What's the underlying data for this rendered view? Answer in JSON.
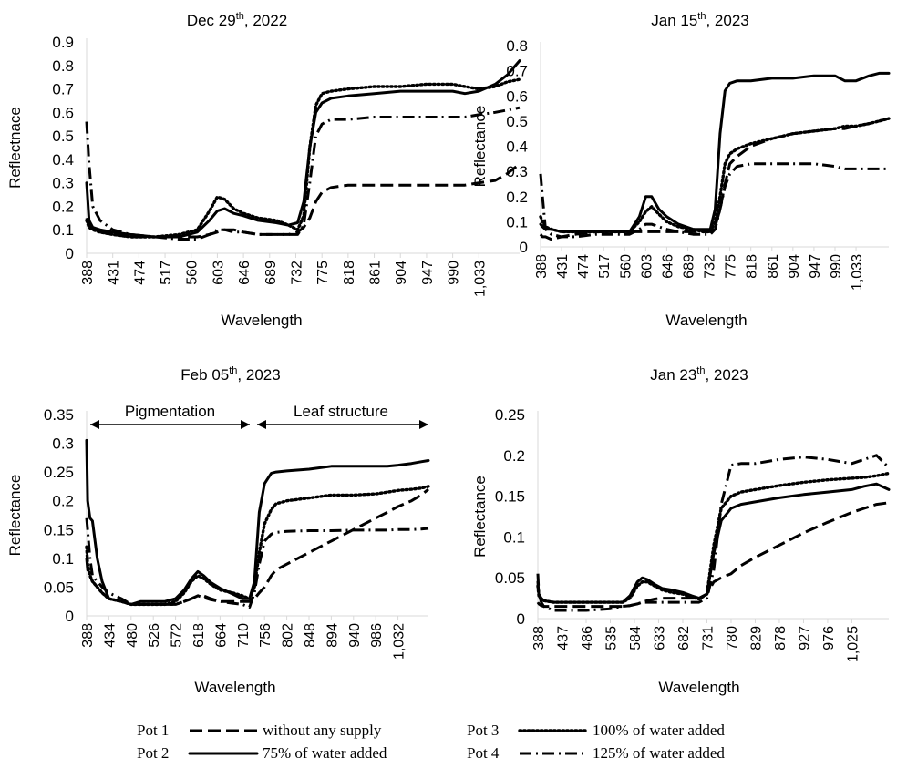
{
  "chart_data": [
    {
      "type": "line",
      "title": "Dec 29th, 2022",
      "title_parts": {
        "pre": "Dec 29",
        "sup": "th",
        "post": ", 2022"
      },
      "xlabel": "Wavelength",
      "ylabel": "Reflectnace",
      "ylim": [
        0,
        0.9
      ],
      "ystep": 0.1,
      "xlim": [
        388,
        1100
      ],
      "xticks": [
        "388",
        "431",
        "474",
        "517",
        "560",
        "603",
        "646",
        "689",
        "732",
        "775",
        "818",
        "861",
        "904",
        "947",
        "990",
        "1,033"
      ],
      "x": [
        388,
        392,
        398,
        410,
        431,
        460,
        500,
        540,
        570,
        590,
        603,
        615,
        630,
        646,
        670,
        700,
        720,
        735,
        745,
        755,
        765,
        775,
        790,
        818,
        861,
        904,
        947,
        990,
        1010,
        1033,
        1060,
        1080,
        1100
      ],
      "series": [
        {
          "name": "Pot 1",
          "values": [
            0.15,
            0.12,
            0.1,
            0.09,
            0.08,
            0.07,
            0.07,
            0.07,
            0.07,
            0.08,
            0.09,
            0.1,
            0.1,
            0.09,
            0.08,
            0.08,
            0.08,
            0.09,
            0.11,
            0.15,
            0.22,
            0.26,
            0.28,
            0.29,
            0.29,
            0.29,
            0.29,
            0.29,
            0.29,
            0.3,
            0.31,
            0.34,
            0.38
          ]
        },
        {
          "name": "Pot 2",
          "values": [
            0.3,
            0.14,
            0.11,
            0.1,
            0.09,
            0.08,
            0.07,
            0.07,
            0.09,
            0.14,
            0.18,
            0.19,
            0.17,
            0.16,
            0.14,
            0.13,
            0.12,
            0.13,
            0.22,
            0.45,
            0.6,
            0.64,
            0.66,
            0.67,
            0.68,
            0.69,
            0.69,
            0.69,
            0.68,
            0.69,
            0.72,
            0.76,
            0.82
          ]
        },
        {
          "name": "Pot 3",
          "values": [
            0.14,
            0.11,
            0.1,
            0.09,
            0.08,
            0.07,
            0.07,
            0.08,
            0.1,
            0.18,
            0.24,
            0.23,
            0.19,
            0.17,
            0.15,
            0.14,
            0.12,
            0.1,
            0.16,
            0.45,
            0.63,
            0.68,
            0.69,
            0.7,
            0.71,
            0.71,
            0.72,
            0.72,
            0.71,
            0.7,
            0.71,
            0.73,
            0.74
          ]
        },
        {
          "name": "Pot 4",
          "values": [
            0.56,
            0.38,
            0.2,
            0.14,
            0.1,
            0.08,
            0.07,
            0.06,
            0.06,
            0.08,
            0.1,
            0.1,
            0.09,
            0.09,
            0.08,
            0.08,
            0.08,
            0.08,
            0.12,
            0.3,
            0.5,
            0.55,
            0.57,
            0.57,
            0.58,
            0.58,
            0.58,
            0.58,
            0.58,
            0.59,
            0.6,
            0.61,
            0.62
          ]
        }
      ]
    },
    {
      "type": "line",
      "title": "Jan 15th, 2023",
      "title_parts": {
        "pre": "Jan 15",
        "sup": "th",
        "post": ", 2023"
      },
      "xlabel": "Wavelength",
      "ylabel": "Reflectance",
      "ylim": [
        0,
        0.8
      ],
      "ystep": 0.1,
      "xlim": [
        388,
        1100
      ],
      "xticks": [
        "388",
        "431",
        "474",
        "517",
        "560",
        "603",
        "646",
        "689",
        "732",
        "775",
        "818",
        "861",
        "904",
        "947",
        "990",
        "1,033"
      ],
      "x": [
        388,
        392,
        398,
        410,
        431,
        460,
        500,
        540,
        570,
        590,
        603,
        615,
        630,
        646,
        670,
        700,
        720,
        735,
        745,
        755,
        765,
        775,
        790,
        818,
        861,
        904,
        947,
        990,
        1010,
        1033,
        1060,
        1080,
        1100
      ],
      "series": [
        {
          "name": "Pot 1",
          "values": [
            0.05,
            0.04,
            0.04,
            0.03,
            0.04,
            0.05,
            0.06,
            0.06,
            0.06,
            0.06,
            0.06,
            0.06,
            0.06,
            0.06,
            0.06,
            0.06,
            0.06,
            0.06,
            0.08,
            0.15,
            0.25,
            0.33,
            0.36,
            0.4,
            0.43,
            0.45,
            0.46,
            0.47,
            0.47,
            0.48,
            0.49,
            0.5,
            0.51
          ]
        },
        {
          "name": "Pot 2",
          "values": [
            0.09,
            0.08,
            0.07,
            0.07,
            0.06,
            0.06,
            0.06,
            0.06,
            0.06,
            0.12,
            0.2,
            0.2,
            0.15,
            0.12,
            0.09,
            0.07,
            0.07,
            0.07,
            0.15,
            0.45,
            0.62,
            0.65,
            0.66,
            0.66,
            0.67,
            0.67,
            0.68,
            0.68,
            0.66,
            0.66,
            0.68,
            0.69,
            0.69
          ]
        },
        {
          "name": "Pot 3",
          "values": [
            0.12,
            0.1,
            0.08,
            0.07,
            0.06,
            0.06,
            0.06,
            0.06,
            0.06,
            0.1,
            0.14,
            0.16,
            0.13,
            0.1,
            0.08,
            0.07,
            0.06,
            0.06,
            0.1,
            0.2,
            0.33,
            0.37,
            0.39,
            0.41,
            0.43,
            0.45,
            0.46,
            0.47,
            0.48,
            0.48,
            0.49,
            0.5,
            0.51
          ]
        },
        {
          "name": "Pot 4",
          "values": [
            0.29,
            0.2,
            0.07,
            0.05,
            0.04,
            0.04,
            0.05,
            0.05,
            0.05,
            0.07,
            0.09,
            0.09,
            0.08,
            0.07,
            0.06,
            0.05,
            0.05,
            0.05,
            0.07,
            0.15,
            0.24,
            0.29,
            0.32,
            0.33,
            0.33,
            0.33,
            0.33,
            0.32,
            0.31,
            0.31,
            0.31,
            0.31,
            0.31
          ]
        }
      ]
    },
    {
      "type": "line",
      "title": "Feb 05th, 2023",
      "title_parts": {
        "pre": "Feb 05",
        "sup": "th",
        "post": ", 2023"
      },
      "xlabel": "Wavelength",
      "ylabel": "Reflectance",
      "ylim": [
        0,
        0.35
      ],
      "ystep": 0.05,
      "xlim": [
        388,
        1095
      ],
      "xticks": [
        "388",
        "434",
        "480",
        "526",
        "572",
        "618",
        "664",
        "710",
        "756",
        "802",
        "848",
        "894",
        "940",
        "986",
        "1,032"
      ],
      "annotations": {
        "left": "Pigmentation",
        "right": "Leaf structure",
        "split_x": 733
      },
      "x": [
        388,
        390,
        395,
        400,
        410,
        420,
        434,
        460,
        480,
        500,
        526,
        550,
        572,
        590,
        605,
        618,
        630,
        645,
        664,
        690,
        710,
        725,
        735,
        745,
        756,
        770,
        780,
        802,
        848,
        894,
        940,
        986,
        1010,
        1032,
        1060,
        1080,
        1095
      ],
      "series": [
        {
          "name": "Pot 1",
          "values": [
            0.1,
            0.08,
            0.07,
            0.06,
            0.05,
            0.04,
            0.03,
            0.025,
            0.02,
            0.02,
            0.02,
            0.02,
            0.02,
            0.025,
            0.03,
            0.035,
            0.035,
            0.03,
            0.025,
            0.025,
            0.025,
            0.025,
            0.03,
            0.04,
            0.05,
            0.07,
            0.08,
            0.09,
            0.11,
            0.13,
            0.15,
            0.17,
            0.18,
            0.19,
            0.2,
            0.21,
            0.22
          ]
        },
        {
          "name": "Pot 2",
          "values": [
            0.305,
            0.2,
            0.17,
            0.165,
            0.1,
            0.06,
            0.03,
            0.025,
            0.02,
            0.025,
            0.025,
            0.025,
            0.03,
            0.045,
            0.065,
            0.077,
            0.07,
            0.058,
            0.048,
            0.038,
            0.03,
            0.03,
            0.06,
            0.18,
            0.23,
            0.248,
            0.25,
            0.252,
            0.255,
            0.26,
            0.26,
            0.26,
            0.26,
            0.262,
            0.265,
            0.268,
            0.27
          ]
        },
        {
          "name": "Pot 3",
          "values": [
            0.12,
            0.09,
            0.07,
            0.06,
            0.05,
            0.04,
            0.03,
            0.025,
            0.02,
            0.02,
            0.02,
            0.02,
            0.025,
            0.04,
            0.06,
            0.07,
            0.065,
            0.055,
            0.045,
            0.04,
            0.035,
            0.03,
            0.05,
            0.11,
            0.16,
            0.185,
            0.195,
            0.2,
            0.205,
            0.21,
            0.21,
            0.212,
            0.215,
            0.218,
            0.22,
            0.222,
            0.225
          ]
        },
        {
          "name": "Pot 4",
          "values": [
            0.17,
            0.15,
            0.1,
            0.07,
            0.06,
            0.05,
            0.04,
            0.03,
            0.02,
            0.02,
            0.02,
            0.02,
            0.02,
            0.025,
            0.03,
            0.035,
            0.032,
            0.028,
            0.025,
            0.022,
            0.02,
            0.015,
            0.04,
            0.09,
            0.13,
            0.142,
            0.145,
            0.147,
            0.148,
            0.148,
            0.149,
            0.149,
            0.149,
            0.15,
            0.15,
            0.151,
            0.152
          ]
        }
      ]
    },
    {
      "type": "line",
      "title": "Jan 23th, 2023",
      "title_parts": {
        "pre": "Jan 23",
        "sup": "th",
        "post": ", 2023"
      },
      "xlabel": "Wavelength",
      "ylabel": "Reflectance",
      "ylim": [
        0,
        0.25
      ],
      "ystep": 0.05,
      "xlim": [
        388,
        1100
      ],
      "xticks": [
        "388",
        "437",
        "486",
        "535",
        "584",
        "633",
        "682",
        "731",
        "780",
        "829",
        "878",
        "927",
        "976",
        "1,025"
      ],
      "x": [
        388,
        390,
        395,
        400,
        420,
        437,
        486,
        535,
        560,
        575,
        590,
        600,
        610,
        625,
        640,
        660,
        682,
        700,
        715,
        731,
        745,
        760,
        780,
        800,
        829,
        878,
        927,
        976,
        1025,
        1050,
        1075,
        1100
      ],
      "series": [
        {
          "name": "Pot 1",
          "values": [
            0.02,
            0.018,
            0.016,
            0.015,
            0.015,
            0.015,
            0.015,
            0.015,
            0.015,
            0.016,
            0.018,
            0.02,
            0.022,
            0.024,
            0.025,
            0.025,
            0.025,
            0.025,
            0.025,
            0.03,
            0.045,
            0.05,
            0.055,
            0.065,
            0.075,
            0.09,
            0.105,
            0.118,
            0.13,
            0.135,
            0.14,
            0.142
          ]
        },
        {
          "name": "Pot 2",
          "values": [
            0.045,
            0.03,
            0.025,
            0.022,
            0.02,
            0.02,
            0.02,
            0.02,
            0.02,
            0.028,
            0.045,
            0.05,
            0.048,
            0.042,
            0.037,
            0.035,
            0.032,
            0.028,
            0.025,
            0.03,
            0.08,
            0.12,
            0.135,
            0.14,
            0.143,
            0.148,
            0.152,
            0.155,
            0.158,
            0.162,
            0.165,
            0.158
          ]
        },
        {
          "name": "Pot 3",
          "values": [
            0.04,
            0.028,
            0.024,
            0.022,
            0.02,
            0.02,
            0.02,
            0.02,
            0.02,
            0.025,
            0.04,
            0.045,
            0.045,
            0.04,
            0.035,
            0.032,
            0.03,
            0.026,
            0.024,
            0.03,
            0.09,
            0.135,
            0.15,
            0.155,
            0.158,
            0.163,
            0.167,
            0.17,
            0.172,
            0.173,
            0.175,
            0.178
          ]
        },
        {
          "name": "Pot 4",
          "values": [
            0.055,
            0.03,
            0.02,
            0.015,
            0.01,
            0.01,
            0.01,
            0.012,
            0.015,
            0.016,
            0.018,
            0.02,
            0.02,
            0.02,
            0.02,
            0.02,
            0.02,
            0.02,
            0.02,
            0.025,
            0.06,
            0.14,
            0.188,
            0.19,
            0.19,
            0.195,
            0.198,
            0.195,
            0.19,
            0.195,
            0.2,
            0.185
          ]
        }
      ]
    }
  ],
  "legend": [
    {
      "pot": "Pot 1",
      "label": "without any supply",
      "style": "dashed"
    },
    {
      "pot": "Pot 2",
      "label": "75% of water added",
      "style": "solid"
    },
    {
      "pot": "Pot 3",
      "label": "100% of water added",
      "style": "dotted"
    },
    {
      "pot": "Pot 4",
      "label": "125% of water added",
      "style": "dashdot"
    }
  ],
  "colors": {
    "line": "#000000",
    "axis": "#d9d9d9",
    "text": "#000000"
  }
}
